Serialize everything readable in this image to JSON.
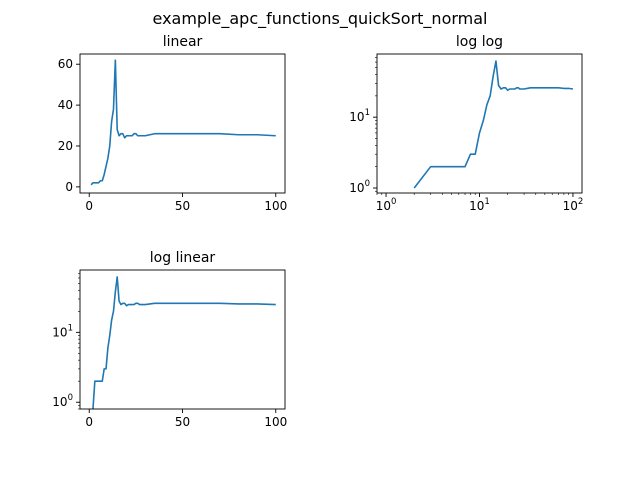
{
  "figure": {
    "suptitle": "example_apc_functions_quickSort_normal"
  },
  "series_color": "#1f77b4",
  "chart_data": [
    {
      "type": "line",
      "title": "linear",
      "xscale": "linear",
      "yscale": "linear",
      "xlim": [
        -4.95,
        104.95
      ],
      "ylim": [
        -3.0,
        65.0
      ],
      "xticks": [
        0,
        50,
        100
      ],
      "xticklabels": [
        "0",
        "50",
        "100"
      ],
      "yticks": [
        0,
        20,
        40,
        60
      ],
      "yticklabels": [
        "0",
        "20",
        "40",
        "60"
      ],
      "grid": false,
      "x": [
        1,
        2,
        3,
        4,
        5,
        6,
        7,
        8,
        9,
        10,
        11,
        12,
        13,
        14,
        15,
        16,
        17,
        18,
        19,
        20,
        21,
        22,
        23,
        24,
        25,
        26,
        27,
        28,
        29,
        30,
        35,
        40,
        45,
        50,
        60,
        70,
        80,
        90,
        100
      ],
      "series": [
        {
          "values": [
            1,
            2,
            2,
            2,
            2,
            3,
            3,
            6,
            10,
            14,
            20,
            32,
            38,
            62,
            28,
            25,
            26,
            26,
            24,
            25,
            25,
            25,
            25,
            26,
            26,
            25,
            25,
            25,
            25,
            25,
            26,
            26,
            26,
            26,
            26,
            26,
            25.5,
            25.5,
            25
          ]
        }
      ]
    },
    {
      "type": "line",
      "title": "log log",
      "xscale": "log",
      "yscale": "log",
      "xlim": [
        0.8,
        125
      ],
      "ylim": [
        0.85,
        78
      ],
      "xticks": [
        1,
        10,
        100
      ],
      "xticklabels": [
        "10^0",
        "10^1",
        "10^2"
      ],
      "yticks": [
        1,
        10
      ],
      "yticklabels": [
        "10^0",
        "10^1"
      ],
      "grid": false,
      "x": [
        2,
        3,
        4,
        5,
        6,
        7,
        8,
        9,
        10,
        11,
        12,
        13,
        14,
        15,
        16,
        17,
        18,
        19,
        20,
        21,
        22,
        23,
        24,
        25,
        26,
        27,
        28,
        29,
        30,
        35,
        40,
        45,
        50,
        60,
        70,
        80,
        90,
        100
      ],
      "series": [
        {
          "values": [
            1,
            2,
            2,
            2,
            2,
            2,
            3,
            3,
            6,
            9,
            15,
            20,
            38,
            62,
            28,
            25,
            26,
            26,
            24,
            25,
            25,
            25,
            25,
            26,
            26,
            25,
            25,
            25,
            25,
            26,
            26,
            26,
            26,
            26,
            26,
            25.5,
            25.5,
            25
          ]
        }
      ]
    },
    {
      "type": "line",
      "title": "log linear",
      "xscale": "linear",
      "yscale": "log",
      "xlim": [
        -4.95,
        104.95
      ],
      "ylim": [
        0.8,
        78
      ],
      "xticks": [
        0,
        50,
        100
      ],
      "xticklabels": [
        "0",
        "50",
        "100"
      ],
      "yticks": [
        1,
        10
      ],
      "yticklabels": [
        "10^0",
        "10^1"
      ],
      "grid": false,
      "x": [
        2,
        3,
        4,
        5,
        6,
        7,
        8,
        9,
        10,
        11,
        12,
        13,
        14,
        15,
        16,
        17,
        18,
        19,
        20,
        21,
        22,
        23,
        24,
        25,
        26,
        27,
        28,
        29,
        30,
        35,
        40,
        45,
        50,
        60,
        70,
        80,
        90,
        100
      ],
      "series": [
        {
          "values": [
            0.8,
            2,
            2,
            2,
            2,
            2,
            3,
            3,
            6,
            9,
            15,
            20,
            38,
            62,
            28,
            25,
            26,
            26,
            24,
            25,
            25,
            25,
            25,
            26,
            26,
            25,
            25,
            25,
            25,
            26,
            26,
            26,
            26,
            26,
            26,
            25.5,
            25.5,
            25
          ]
        }
      ]
    }
  ]
}
